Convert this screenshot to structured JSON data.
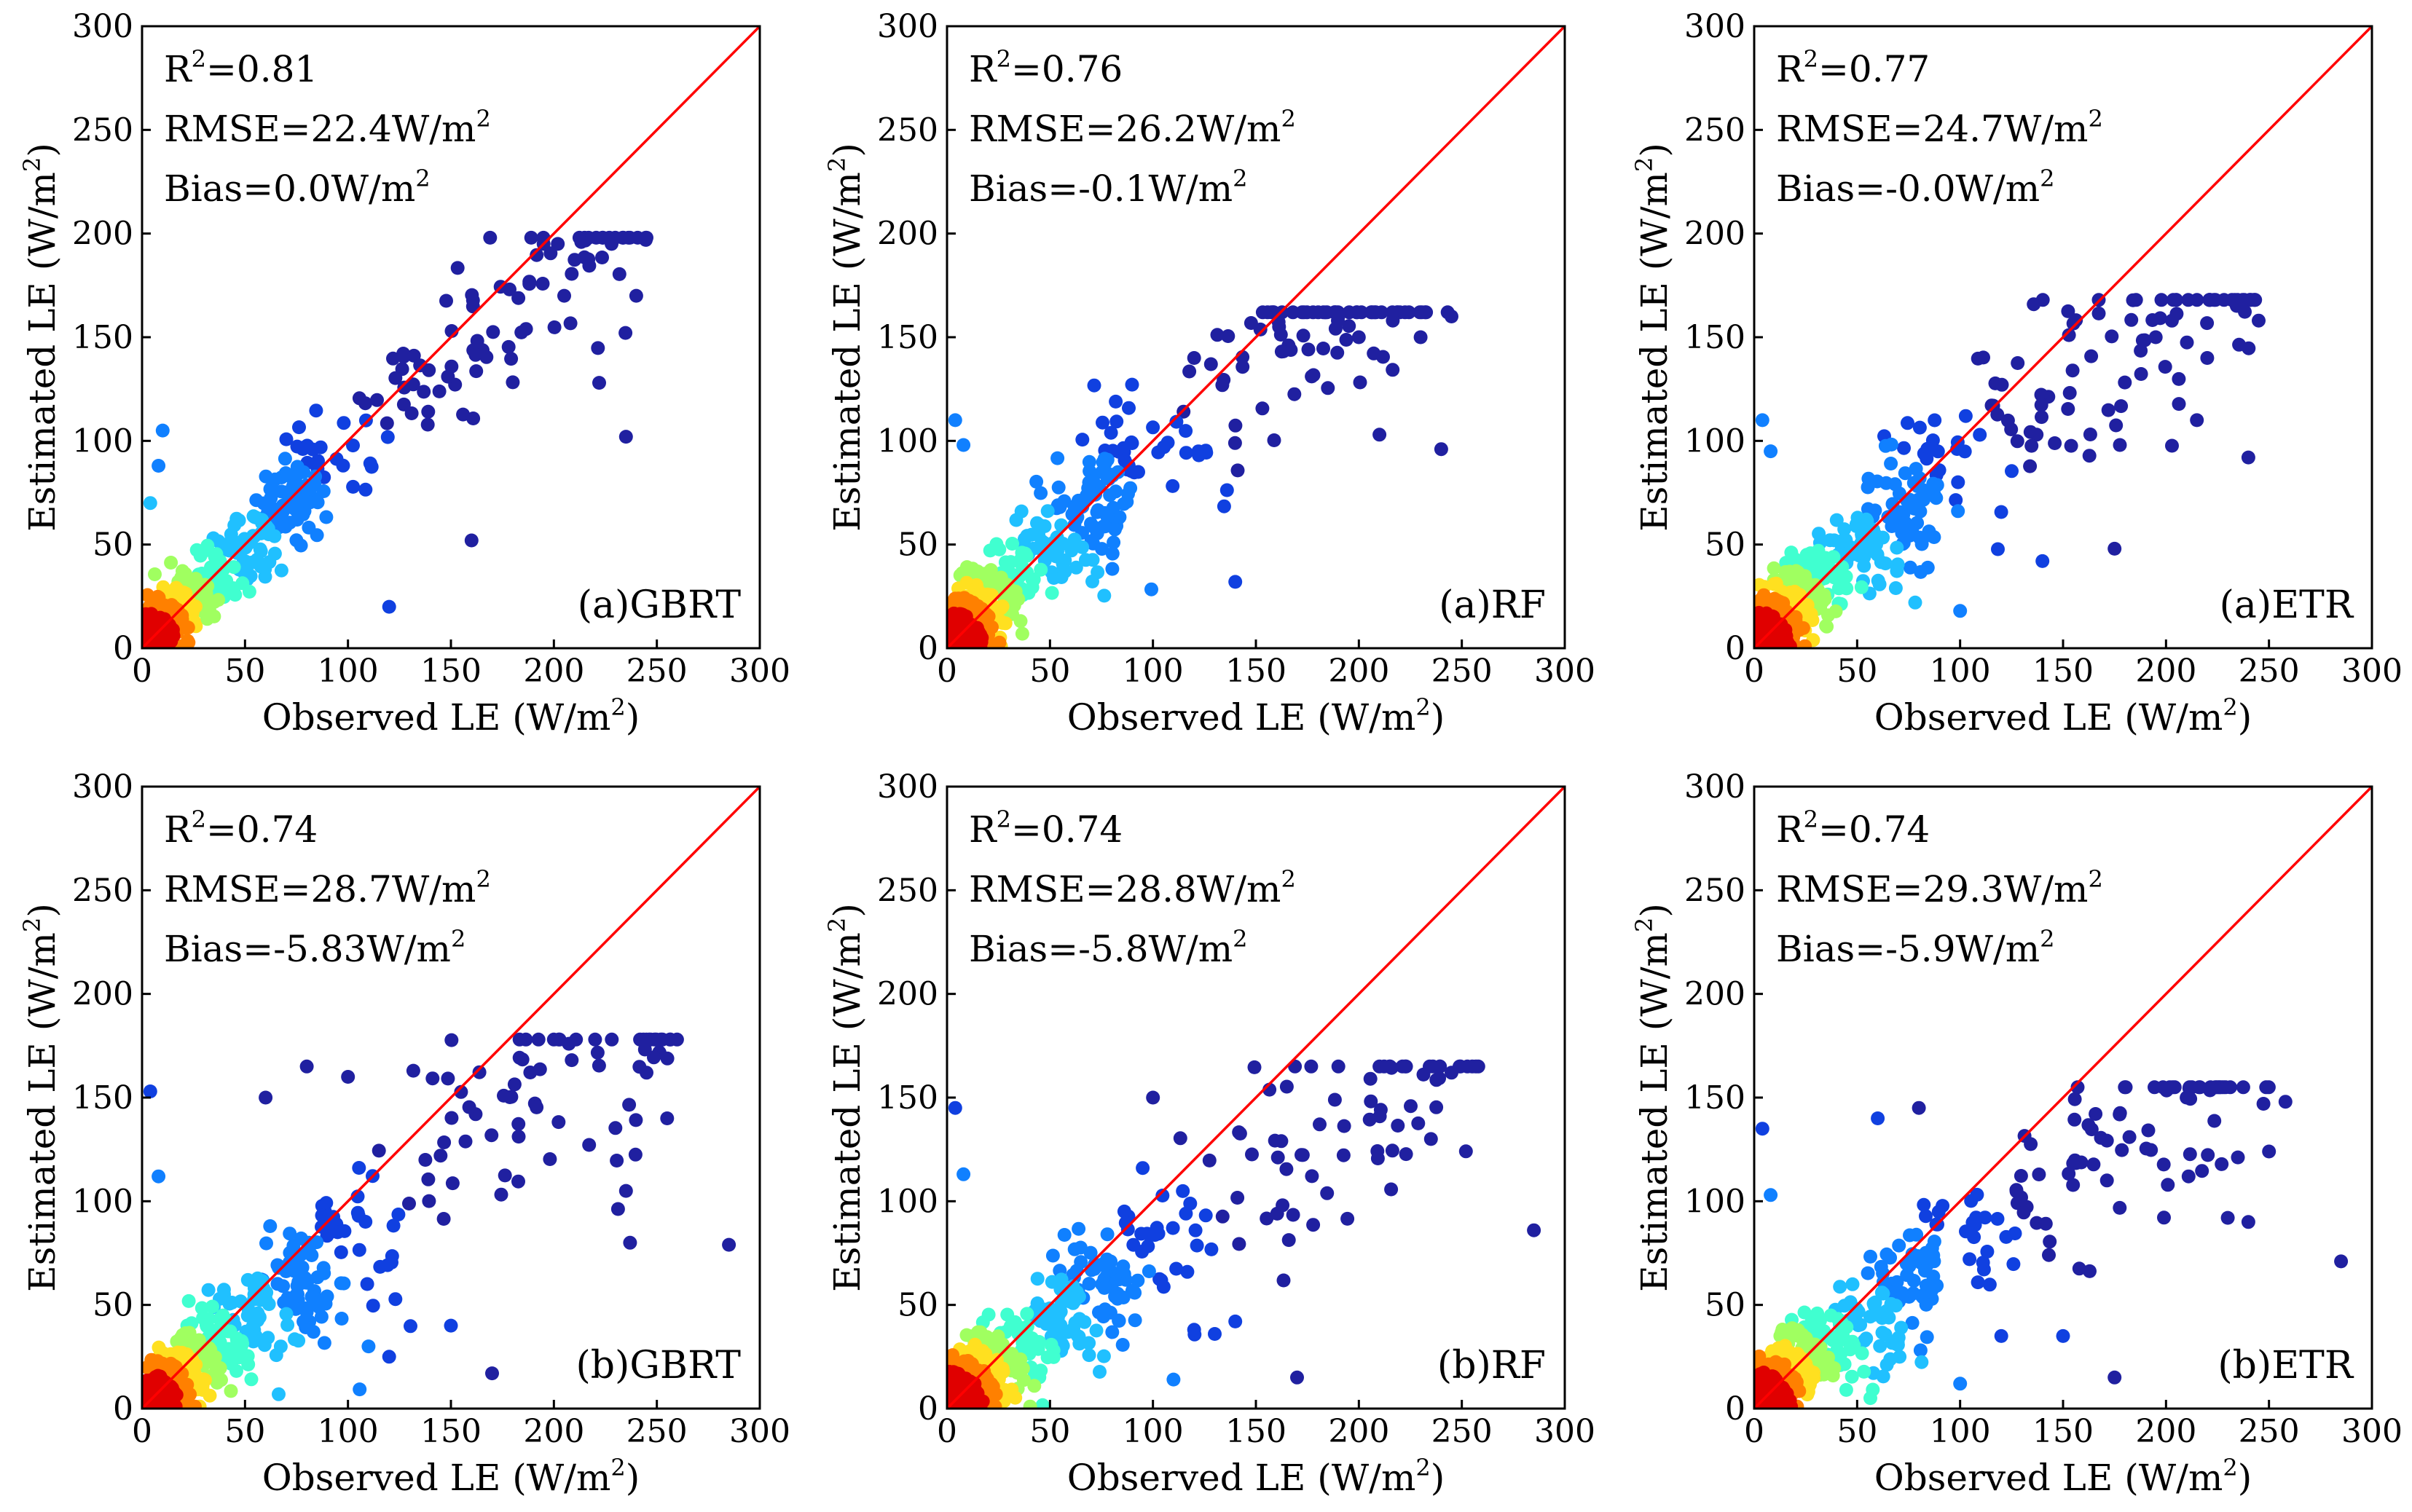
{
  "figure": {
    "description": "Scatter plots of estimated versus observed latent heat flux for three models"
  },
  "style": {
    "one_to_one_color": "#ff0000",
    "axis_color": "#000000",
    "density_colormap": [
      "#2020a0",
      "#1040e0",
      "#1080ff",
      "#20c0ff",
      "#40ffd0",
      "#a0ff60",
      "#ffe020",
      "#ff8000",
      "#e00000"
    ]
  },
  "chart_data": [
    {
      "type": "scatter",
      "panel": "a-GBRT",
      "tag": "(a)GBRT",
      "xlabel_main": "Observed LE (W/m",
      "xlabel_sup": "2",
      "xlabel_end": ")",
      "ylabel_main": "Estimated LE (W/m",
      "ylabel_sup": "2",
      "ylabel_end": ")",
      "xlim": [
        0,
        300
      ],
      "ylim": [
        0,
        300
      ],
      "xticks": [
        "0",
        "50",
        "100",
        "150",
        "200",
        "250",
        "300"
      ],
      "yticks": [
        "0",
        "50",
        "100",
        "150",
        "200",
        "250",
        "300"
      ],
      "r2_main": "R",
      "r2_sup": "2",
      "r2_value": "=0.81",
      "rmse_main": "RMSE=22.4W/m",
      "rmse_sup": "2",
      "bias_main": "Bias=0.0W/m",
      "bias_sup": "2",
      "r2": 0.81,
      "rmse": 22.4,
      "bias": 0.0,
      "one_to_one": [
        [
          0,
          0
        ],
        [
          300,
          300
        ]
      ],
      "cloud": {
        "seed": 11,
        "n": 520,
        "slope": 0.92,
        "intercept": 3,
        "spread": 14,
        "xmax": 245,
        "ymax": 198
      },
      "outliers": [
        [
          10,
          105
        ],
        [
          4,
          70
        ],
        [
          8,
          88
        ],
        [
          120,
          20
        ],
        [
          160,
          52
        ],
        [
          235,
          102
        ],
        [
          222,
          128
        ],
        [
          245,
          198
        ],
        [
          228,
          195
        ],
        [
          195,
          195
        ],
        [
          240,
          170
        ],
        [
          205,
          170
        ]
      ]
    },
    {
      "type": "scatter",
      "panel": "a-RF",
      "tag": "(a)RF",
      "xlabel_main": "Observed LE (W/m",
      "xlabel_sup": "2",
      "xlabel_end": ")",
      "ylabel_main": "Estimated LE (W/m",
      "ylabel_sup": "2",
      "ylabel_end": ")",
      "xlim": [
        0,
        300
      ],
      "ylim": [
        0,
        300
      ],
      "xticks": [
        "0",
        "50",
        "100",
        "150",
        "200",
        "250",
        "300"
      ],
      "yticks": [
        "0",
        "50",
        "100",
        "150",
        "200",
        "250",
        "300"
      ],
      "r2_main": "R",
      "r2_sup": "2",
      "r2_value": "=0.76",
      "rmse_main": "RMSE=26.2W/m",
      "rmse_sup": "2",
      "bias_main": "Bias=-0.1W/m",
      "bias_sup": "2",
      "r2": 0.76,
      "rmse": 26.2,
      "bias": -0.1,
      "one_to_one": [
        [
          0,
          0
        ],
        [
          300,
          300
        ]
      ],
      "cloud": {
        "seed": 23,
        "n": 520,
        "slope": 0.85,
        "intercept": 6,
        "spread": 18,
        "xmax": 245,
        "ymax": 162
      },
      "outliers": [
        [
          4,
          110
        ],
        [
          8,
          98
        ],
        [
          140,
          32
        ],
        [
          240,
          96
        ],
        [
          245,
          160
        ],
        [
          230,
          150
        ],
        [
          210,
          103
        ],
        [
          200,
          150
        ],
        [
          190,
          160
        ],
        [
          120,
          140
        ]
      ]
    },
    {
      "type": "scatter",
      "panel": "a-ETR",
      "tag": "(a)ETR",
      "xlabel_main": "Observed LE (W/m",
      "xlabel_sup": "2",
      "xlabel_end": ")",
      "ylabel_main": "Estimated LE (W/m",
      "ylabel_sup": "2",
      "ylabel_end": ")",
      "xlim": [
        0,
        300
      ],
      "ylim": [
        0,
        300
      ],
      "xticks": [
        "0",
        "50",
        "100",
        "150",
        "200",
        "250",
        "300"
      ],
      "yticks": [
        "0",
        "50",
        "100",
        "150",
        "200",
        "250",
        "300"
      ],
      "r2_main": "R",
      "r2_sup": "2",
      "r2_value": "=0.77",
      "rmse_main": "RMSE=24.7W/m",
      "rmse_sup": "2",
      "bias_main": "Bias=-0.0W/m",
      "bias_sup": "2",
      "r2": 0.77,
      "rmse": 24.7,
      "bias": -0.0,
      "one_to_one": [
        [
          0,
          0
        ],
        [
          300,
          300
        ]
      ],
      "cloud": {
        "seed": 37,
        "n": 520,
        "slope": 0.82,
        "intercept": 7,
        "spread": 17,
        "xmax": 245,
        "ymax": 168
      },
      "outliers": [
        [
          4,
          110
        ],
        [
          8,
          95
        ],
        [
          100,
          18
        ],
        [
          140,
          42
        ],
        [
          175,
          48
        ],
        [
          240,
          92
        ],
        [
          245,
          158
        ],
        [
          220,
          140
        ],
        [
          215,
          110
        ],
        [
          205,
          168
        ],
        [
          195,
          150
        ]
      ]
    },
    {
      "type": "scatter",
      "panel": "b-GBRT",
      "tag": "(b)GBRT",
      "xlabel_main": "Observed LE (W/m",
      "xlabel_sup": "2",
      "xlabel_end": ")",
      "ylabel_main": "Estimated LE (W/m",
      "ylabel_sup": "2",
      "ylabel_end": ")",
      "xlim": [
        0,
        300
      ],
      "ylim": [
        0,
        300
      ],
      "xticks": [
        "0",
        "50",
        "100",
        "150",
        "200",
        "250",
        "300"
      ],
      "yticks": [
        "0",
        "50",
        "100",
        "150",
        "200",
        "250",
        "300"
      ],
      "r2_main": "R",
      "r2_sup": "2",
      "r2_value": "=0.74",
      "rmse_main": "RMSE=28.7W/m",
      "rmse_sup": "2",
      "bias_main": "Bias=-5.83W/m",
      "bias_sup": "2",
      "r2": 0.74,
      "rmse": 28.7,
      "bias": -5.83,
      "one_to_one": [
        [
          0,
          0
        ],
        [
          300,
          300
        ]
      ],
      "cloud": {
        "seed": 41,
        "n": 500,
        "slope": 0.74,
        "intercept": 2,
        "spread": 18,
        "xmax": 260,
        "ymax": 178
      },
      "outliers": [
        [
          4,
          153
        ],
        [
          8,
          112
        ],
        [
          285,
          79
        ],
        [
          255,
          140
        ],
        [
          245,
          162
        ],
        [
          235,
          105
        ],
        [
          237,
          80
        ],
        [
          170,
          17
        ],
        [
          150,
          40
        ],
        [
          120,
          25
        ],
        [
          110,
          30
        ],
        [
          80,
          165
        ],
        [
          100,
          160
        ],
        [
          60,
          150
        ],
        [
          200,
          178
        ]
      ]
    },
    {
      "type": "scatter",
      "panel": "b-RF",
      "tag": "(b)RF",
      "xlabel_main": "Observed LE (W/m",
      "xlabel_sup": "2",
      "xlabel_end": ")",
      "ylabel_main": "Estimated LE (W/m",
      "ylabel_sup": "2",
      "ylabel_end": ")",
      "xlim": [
        0,
        300
      ],
      "ylim": [
        0,
        300
      ],
      "xticks": [
        "0",
        "50",
        "100",
        "150",
        "200",
        "250",
        "300"
      ],
      "yticks": [
        "0",
        "50",
        "100",
        "150",
        "200",
        "250",
        "300"
      ],
      "r2_main": "R",
      "r2_sup": "2",
      "r2_value": "=0.74",
      "rmse_main": "RMSE=28.8W/m",
      "rmse_sup": "2",
      "bias_main": "Bias=-5.8W/m",
      "bias_sup": "2",
      "r2": 0.74,
      "rmse": 28.8,
      "bias": -5.8,
      "one_to_one": [
        [
          0,
          0
        ],
        [
          300,
          300
        ]
      ],
      "cloud": {
        "seed": 53,
        "n": 500,
        "slope": 0.72,
        "intercept": 3,
        "spread": 18,
        "xmax": 258,
        "ymax": 165
      },
      "outliers": [
        [
          4,
          145
        ],
        [
          8,
          113
        ],
        [
          285,
          86
        ],
        [
          258,
          165
        ],
        [
          245,
          162
        ],
        [
          235,
          130
        ],
        [
          170,
          15
        ],
        [
          140,
          42
        ],
        [
          120,
          38
        ],
        [
          130,
          36
        ],
        [
          110,
          14
        ],
        [
          100,
          150
        ],
        [
          210,
          165
        ]
      ]
    },
    {
      "type": "scatter",
      "panel": "b-ETR",
      "tag": "(b)ETR",
      "xlabel_main": "Observed LE (W/m",
      "xlabel_sup": "2",
      "xlabel_end": ")",
      "ylabel_main": "Estimated LE (W/m",
      "ylabel_sup": "2",
      "ylabel_end": ")",
      "xlim": [
        0,
        300
      ],
      "ylim": [
        0,
        300
      ],
      "xticks": [
        "0",
        "50",
        "100",
        "150",
        "200",
        "250",
        "300"
      ],
      "yticks": [
        "0",
        "50",
        "100",
        "150",
        "200",
        "250",
        "300"
      ],
      "r2_main": "R",
      "r2_sup": "2",
      "r2_value": "=0.74",
      "rmse_main": "RMSE=29.3W/m",
      "rmse_sup": "2",
      "bias_main": "Bias=-5.9W/m",
      "bias_sup": "2",
      "r2": 0.74,
      "rmse": 29.3,
      "bias": -5.9,
      "one_to_one": [
        [
          0,
          0
        ],
        [
          300,
          300
        ]
      ],
      "cloud": {
        "seed": 67,
        "n": 500,
        "slope": 0.71,
        "intercept": 3,
        "spread": 17,
        "xmax": 258,
        "ymax": 155
      },
      "outliers": [
        [
          4,
          135
        ],
        [
          8,
          103
        ],
        [
          285,
          71
        ],
        [
          258,
          148
        ],
        [
          250,
          124
        ],
        [
          240,
          90
        ],
        [
          230,
          92
        ],
        [
          175,
          15
        ],
        [
          150,
          35
        ],
        [
          120,
          35
        ],
        [
          100,
          12
        ],
        [
          80,
          145
        ],
        [
          60,
          140
        ],
        [
          210,
          150
        ]
      ]
    }
  ]
}
